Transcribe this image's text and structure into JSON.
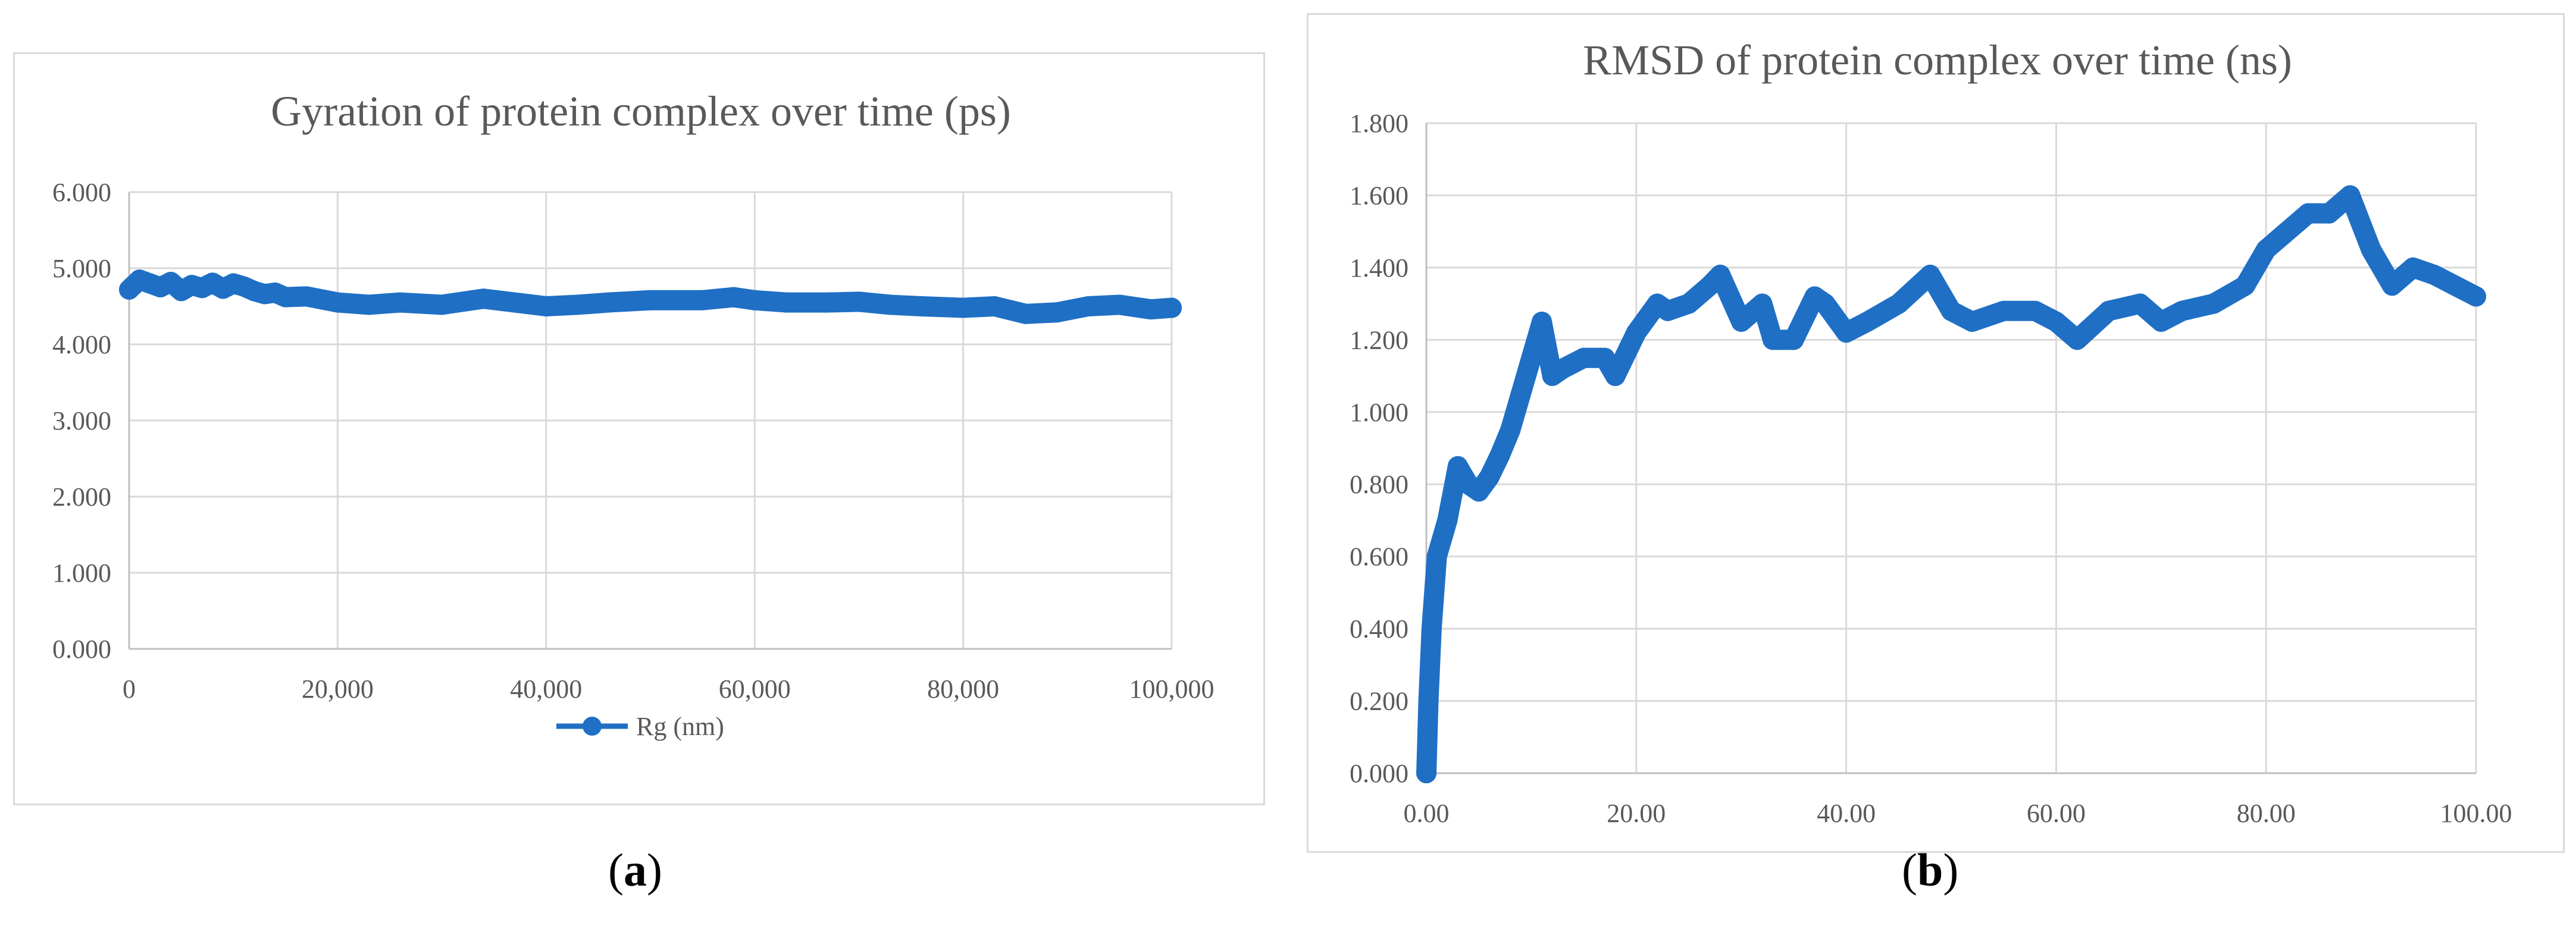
{
  "colors": {
    "series": "#1f6fc5",
    "grid": "#d9d9d9",
    "text": "#595959"
  },
  "captions": {
    "a": {
      "open": "(",
      "letter": "a",
      "close": ")"
    },
    "b": {
      "open": "(",
      "letter": "b",
      "close": ")"
    }
  },
  "chart_data": [
    {
      "type": "line",
      "title": "Gyration of protein complex over time (ps)",
      "xlabel": "",
      "ylabel": "",
      "xlim": [
        0,
        100000
      ],
      "ylim": [
        0,
        6
      ],
      "x_ticks": [
        "0",
        "20,000",
        "40,000",
        "60,000",
        "80,000",
        "100,000"
      ],
      "y_ticks": [
        "0.000",
        "1.000",
        "2.000",
        "3.000",
        "4.000",
        "5.000",
        "6.000"
      ],
      "grid": true,
      "legend": "bottom",
      "marker": "circle",
      "series": [
        {
          "name": "Rg (nm)",
          "x": [
            0,
            1000,
            2000,
            3000,
            4000,
            5000,
            6000,
            7000,
            8000,
            9000,
            10000,
            11000,
            12000,
            13000,
            14000,
            15000,
            17000,
            20000,
            23000,
            26000,
            30000,
            34000,
            37000,
            40000,
            43000,
            46000,
            50000,
            55000,
            58000,
            60000,
            63000,
            67000,
            70000,
            73000,
            76000,
            80000,
            83000,
            86000,
            89000,
            92000,
            95000,
            98000,
            100000
          ],
          "values": [
            4.72,
            4.85,
            4.8,
            4.75,
            4.82,
            4.7,
            4.78,
            4.74,
            4.81,
            4.73,
            4.8,
            4.76,
            4.7,
            4.66,
            4.68,
            4.62,
            4.63,
            4.55,
            4.52,
            4.55,
            4.52,
            4.6,
            4.55,
            4.5,
            4.52,
            4.55,
            4.58,
            4.58,
            4.62,
            4.58,
            4.55,
            4.55,
            4.56,
            4.52,
            4.5,
            4.48,
            4.5,
            4.4,
            4.42,
            4.5,
            4.52,
            4.46,
            4.48
          ]
        }
      ]
    },
    {
      "type": "line",
      "title": "RMSD of protein complex over time (ns)",
      "xlabel": "",
      "ylabel": "",
      "xlim": [
        0,
        100
      ],
      "ylim": [
        0,
        1.8
      ],
      "x_ticks": [
        "0.00",
        "20.00",
        "40.00",
        "60.00",
        "80.00",
        "100.00"
      ],
      "y_ticks": [
        "0.000",
        "0.200",
        "0.400",
        "0.600",
        "0.800",
        "1.000",
        "1.200",
        "1.400",
        "1.600",
        "1.800"
      ],
      "grid": true,
      "legend": "none",
      "marker": "circle",
      "series": [
        {
          "x": [
            0,
            0.2,
            0.5,
            1,
            2,
            3,
            4,
            5,
            6,
            7,
            8,
            9,
            10,
            11,
            12,
            13,
            15,
            17,
            18,
            20,
            22,
            23,
            25,
            27,
            28,
            30,
            32,
            33,
            35,
            37,
            38,
            40,
            42,
            45,
            48,
            50,
            52,
            55,
            58,
            60,
            62,
            65,
            68,
            70,
            72,
            75,
            78,
            80,
            82,
            84,
            86,
            88,
            90,
            92,
            94,
            96,
            98,
            100
          ],
          "values": [
            0.0,
            0.2,
            0.4,
            0.6,
            0.7,
            0.85,
            0.8,
            0.78,
            0.82,
            0.88,
            0.95,
            1.05,
            1.15,
            1.25,
            1.1,
            1.12,
            1.15,
            1.15,
            1.1,
            1.22,
            1.3,
            1.28,
            1.3,
            1.35,
            1.38,
            1.25,
            1.3,
            1.2,
            1.2,
            1.32,
            1.3,
            1.22,
            1.25,
            1.3,
            1.38,
            1.28,
            1.25,
            1.28,
            1.28,
            1.25,
            1.2,
            1.28,
            1.3,
            1.25,
            1.28,
            1.3,
            1.35,
            1.45,
            1.5,
            1.55,
            1.55,
            1.6,
            1.45,
            1.35,
            1.4,
            1.38,
            1.35,
            1.32
          ]
        }
      ]
    }
  ]
}
